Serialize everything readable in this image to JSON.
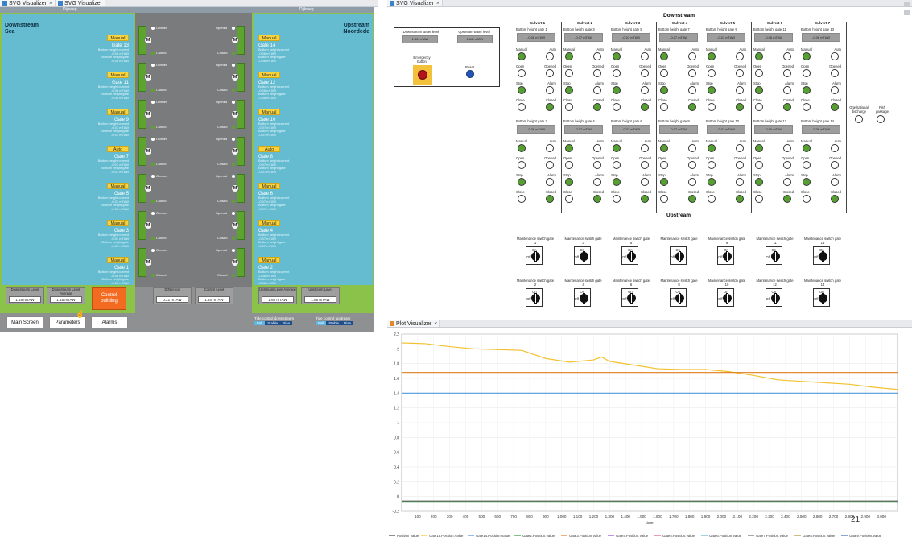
{
  "tabs_left": [
    {
      "label": "SVG Visualizer",
      "close": "×"
    },
    {
      "label": "SVG Visualizer",
      "close": ""
    }
  ],
  "tabs_right_top": [
    {
      "label": "SVG Visualizer",
      "close": "×"
    }
  ],
  "tabs_right_bottom": [
    {
      "label": "Plot Visualizer",
      "close": "×"
    }
  ],
  "left_panel": {
    "top_left_label": "Dijkweg",
    "top_right_label": "Dijkweg",
    "downstream_title": "Downstream",
    "downstream_sub": "Sea",
    "upstream_title": "Upstream",
    "upstream_sub": "Noordede",
    "left_gates": [
      {
        "mode": "Manual",
        "name": "Gate 13",
        "l1": "Bottom height current",
        "v1": "-0.06 mTAW",
        "l2": "Bottom height gate",
        "v2": "-0.06 mTAW"
      },
      {
        "mode": "Manual",
        "name": "Gate 11",
        "l1": "Bottom height current",
        "v1": "-0.06 mTAW",
        "l2": "Bottom height gate",
        "v2": "-0.06 mTAW"
      },
      {
        "mode": "Manual",
        "name": "Gate 9",
        "l1": "Bottom height current",
        "v1": "-0.07 mTAW",
        "l2": "Bottom height gate",
        "v2": "-0.07 mTAW"
      },
      {
        "mode": "Auto",
        "name": "Gate 7",
        "l1": "Bottom height current",
        "v1": "-0.07 mTAW",
        "l2": "Bottom height gate",
        "v2": "-0.07 mTAW"
      },
      {
        "mode": "Manual",
        "name": "Gate 5",
        "l1": "Bottom height current",
        "v1": "-0.07 mTAW",
        "l2": "Bottom height gate",
        "v2": "-0.07 mTAW"
      },
      {
        "mode": "Manual",
        "name": "Gate 3",
        "l1": "Bottom height current",
        "v1": "-0.07 mTAW",
        "l2": "Bottom height gate",
        "v2": "-0.07 mTAW"
      },
      {
        "mode": "Manual",
        "name": "Gate 1",
        "l1": "Bottom height current",
        "v1": "-0.06 mTAW",
        "l2": "Bottom height gate",
        "v2": "-0.06 mTAW"
      }
    ],
    "right_gates": [
      {
        "mode": "Manual",
        "name": "Gate 14",
        "l1": "Bottom height current",
        "v1": "-0.06 mTAW",
        "l2": "Bottom height gate",
        "v2": "-0.06 mTAW"
      },
      {
        "mode": "Manual",
        "name": "Gate 12",
        "l1": "Bottom height current",
        "v1": "-0.06 mTAW",
        "l2": "Bottom height gate",
        "v2": "-0.06 mTAW"
      },
      {
        "mode": "Manual",
        "name": "Gate 10",
        "l1": "Bottom height current",
        "v1": "-0.07 mTAW",
        "l2": "Bottom height gate",
        "v2": "-0.07 mTAW"
      },
      {
        "mode": "Auto",
        "name": "Gate 8",
        "l1": "Bottom height current",
        "v1": "-0.07 mTAW",
        "l2": "Bottom height gate",
        "v2": "-0.07 mTAW"
      },
      {
        "mode": "Manual",
        "name": "Gate 6",
        "l1": "Bottom height current",
        "v1": "-0.07 mTAW",
        "l2": "Bottom height gate",
        "v2": "-0.07 mTAW"
      },
      {
        "mode": "Manual",
        "name": "Gate 4",
        "l1": "Bottom height current",
        "v1": "-0.07 mTAW",
        "l2": "Bottom height gate",
        "v2": "-0.07 mTAW"
      },
      {
        "mode": "Manual",
        "name": "Gate 2",
        "l1": "Bottom height current",
        "v1": "-0.06 mTAW",
        "l2": "Bottom height gate",
        "v2": "-0.06 mTAW"
      }
    ],
    "channel": {
      "opened": "Opened",
      "closed": "Closed",
      "m": "M"
    },
    "levels": [
      {
        "label": "Downstream Level",
        "value": "1.45 mTAW"
      },
      {
        "label": "Downstream Level Average",
        "value": "1.45 mTAW"
      },
      {
        "label": "Difference",
        "value": "0.21 mTAW"
      },
      {
        "label": "Control Level",
        "value": "1.40 mTAW"
      },
      {
        "label": "Upstream Level Average",
        "value": "1.66 mTAW"
      },
      {
        "label": "Upstream Level",
        "value": "1.66 mTAW"
      }
    ],
    "control_building": "Control building",
    "nav": {
      "main": "Main Screen",
      "params": "Parameters",
      "alarms": "Alarms"
    },
    "tide_down": {
      "label": "Tide control downstream",
      "fall": "Fall",
      "stable": "Stable",
      "rise": "Rise"
    },
    "tide_up": {
      "label": "Tide control upstream",
      "fall": "Fall",
      "stable": "Stable",
      "rise": "Rise"
    }
  },
  "right_panel": {
    "downstream": "Downstream",
    "upstream": "Upstream",
    "ds_water_label": "Downstream water level",
    "ds_water_value": "1.45 mTAW",
    "us_water_label": "Upstream water level",
    "us_water_value": "1.66 mTAW",
    "emergency": "Emergency button",
    "reset": "Reset",
    "culverts": [
      "Culvert 1",
      "Culvert 2",
      "Culvert 3",
      "Culvert 4",
      "Culvert 5",
      "Culvert 6",
      "Culvert 7"
    ],
    "top_gates": [
      "Bottom height gate 1",
      "Bottom height gate 3",
      "Bottom height gate 5",
      "Bottom height gate 7",
      "Bottom height gate 9",
      "Bottom height gate 11",
      "Bottom height gate 13"
    ],
    "bottom_gates": [
      "Bottom height gate 2",
      "Bottom height gate 4",
      "Bottom height gate 6",
      "Bottom height gate 8",
      "Bottom height gate 10",
      "Bottom height gate 12",
      "Bottom height gate 14"
    ],
    "top_values": [
      "-0.06 mTAW",
      "-0.07 mTAW",
      "-0.07 mTAW",
      "-0.07 mTAW",
      "-0.07 mTAW",
      "-0.06 mTAW",
      "-0.06 mTAW"
    ],
    "bottom_values": [
      "-0.06 mTAW",
      "-0.07 mTAW",
      "-0.07 mTAW",
      "-0.07 mTAW",
      "-0.07 mTAW",
      "-0.06 mTAW",
      "-0.06 mTAW"
    ],
    "status_labels": [
      [
        "Manual",
        "Auto"
      ],
      [
        "Open",
        "Opened"
      ],
      [
        "Stop",
        "Alarm"
      ],
      [
        "Close",
        "Closed"
      ]
    ],
    "gravitational": "Gravitational discharge",
    "fish": "Fish passage",
    "switch_label": "Maintenance switch gate",
    "on": "On",
    "off": "Off",
    "switch_top": [
      "1",
      "3",
      "5",
      "7",
      "9",
      "11",
      "13"
    ],
    "switch_bottom": [
      "2",
      "4",
      "6",
      "8",
      "10",
      "12",
      "14"
    ]
  },
  "plot": {
    "title": "Plot Visualizer",
    "xlabel": "time",
    "corner": "21",
    "legend": [
      "Position Value",
      "Gate13.Position.Value",
      "Gate14.Position.Value",
      "Gate2.Position.Value",
      "Gate3.Position.Value",
      "Gate4.Position.Value",
      "Gate5.Position.Value",
      "Gate6.Position.Value",
      "Gate7.Position.Value",
      "Gate8.Position.Value",
      "Gate9.Position.Value"
    ],
    "legend_colors": [
      "#444444",
      "#f2c12e",
      "#4c8fd6",
      "#2a9a3a",
      "#e07b1a",
      "#8a54c6",
      "#d65a8a",
      "#58b8c8",
      "#6a6a6a",
      "#b58a2a",
      "#3a6ab0"
    ]
  },
  "chart_data": {
    "type": "line",
    "xlabel": "time",
    "ylabel": "",
    "xlim": [
      0,
      3100
    ],
    "ylim": [
      -0.2,
      2.2
    ],
    "x_ticks": [
      100,
      200,
      300,
      400,
      500,
      600,
      700,
      800,
      900,
      1000,
      1100,
      1200,
      1300,
      1400,
      1500,
      1600,
      1700,
      1800,
      1900,
      2000,
      2100,
      2200,
      2300,
      2400,
      2500,
      2600,
      2700,
      2800,
      2900,
      3000
    ],
    "x_tick_labels": [
      "100",
      "200",
      "300",
      "400",
      "500",
      "600",
      "700",
      "800",
      "900",
      "1,000",
      "1,100",
      "1,200",
      "1,300",
      "1,400",
      "1,500",
      "1,600",
      "1,700",
      "1,800",
      "1,900",
      "2,000",
      "2,100",
      "2,200",
      "2,300",
      "2,400",
      "2,500",
      "2,600",
      "2,700",
      "2,800",
      "2,900",
      "3,000"
    ],
    "y_ticks": [
      -0.2,
      0,
      0.2,
      0.4,
      0.6,
      0.8,
      1,
      1.2,
      1.4,
      1.6,
      1.8,
      2,
      2.2
    ],
    "y_tick_labels": [
      "-0.2",
      "0",
      "0.2",
      "0.4",
      "0.6",
      "0.8",
      "1",
      "1.2",
      "1.4",
      "1.6",
      "1.8",
      "2",
      "2.2"
    ],
    "series": [
      {
        "color": "#f2c12e",
        "x": [
          0,
          150,
          300,
          450,
          600,
          750,
          900,
          1050,
          1200,
          1250,
          1300,
          1450,
          1600,
          1750,
          1900,
          2050,
          2200,
          2350,
          2500,
          2650,
          2800,
          2950,
          3100
        ],
        "values": [
          2.08,
          2.07,
          2.03,
          2.0,
          1.99,
          1.98,
          1.87,
          1.82,
          1.85,
          1.89,
          1.83,
          1.78,
          1.73,
          1.72,
          1.72,
          1.69,
          1.64,
          1.58,
          1.56,
          1.54,
          1.52,
          1.48,
          1.45
        ]
      },
      {
        "color": "#e07b1a",
        "x": [
          0,
          3100
        ],
        "values": [
          1.68,
          1.68
        ]
      },
      {
        "color": "#4c9be0",
        "x": [
          0,
          3100
        ],
        "values": [
          1.4,
          1.4
        ]
      },
      {
        "color": "#2a9a3a",
        "x": [
          0,
          3100
        ],
        "values": [
          -0.07,
          -0.07
        ]
      },
      {
        "color": "#6a6a6a",
        "x": [
          0,
          3100
        ],
        "values": [
          -0.06,
          -0.06
        ]
      }
    ]
  }
}
